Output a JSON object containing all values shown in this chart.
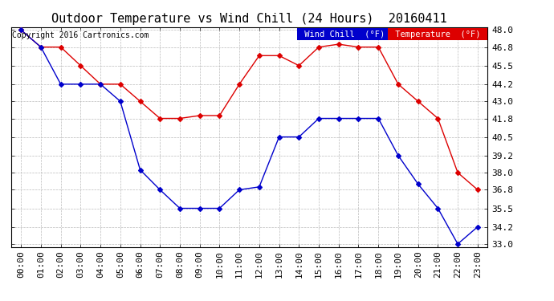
{
  "title": "Outdoor Temperature vs Wind Chill (24 Hours)  20160411",
  "copyright": "Copyright 2016 Cartronics.com",
  "background_color": "#ffffff",
  "plot_bg_color": "#ffffff",
  "grid_color": "#bbbbbb",
  "hours": [
    "00:00",
    "01:00",
    "02:00",
    "03:00",
    "04:00",
    "05:00",
    "06:00",
    "07:00",
    "08:00",
    "09:00",
    "10:00",
    "11:00",
    "12:00",
    "13:00",
    "14:00",
    "15:00",
    "16:00",
    "17:00",
    "18:00",
    "19:00",
    "20:00",
    "21:00",
    "22:00",
    "23:00"
  ],
  "temperature": [
    48.0,
    46.8,
    46.8,
    45.5,
    44.2,
    44.2,
    43.0,
    41.8,
    41.8,
    42.0,
    42.0,
    44.2,
    46.2,
    46.2,
    45.5,
    46.8,
    47.0,
    46.8,
    46.8,
    44.2,
    43.0,
    41.8,
    38.0,
    36.8
  ],
  "wind_chill": [
    48.0,
    46.8,
    44.2,
    44.2,
    44.2,
    43.0,
    38.2,
    36.8,
    35.5,
    35.5,
    35.5,
    36.8,
    37.0,
    40.5,
    40.5,
    41.8,
    41.8,
    41.8,
    41.8,
    39.2,
    37.2,
    35.5,
    33.0,
    34.2
  ],
  "ylim_min": 32.8,
  "ylim_max": 48.2,
  "yticks": [
    33.0,
    34.2,
    35.5,
    36.8,
    38.0,
    39.2,
    40.5,
    41.8,
    43.0,
    44.2,
    45.5,
    46.8,
    48.0
  ],
  "temp_color": "#dd0000",
  "wind_color": "#0000cc",
  "legend_wind_bg": "#0000cc",
  "legend_temp_bg": "#dd0000",
  "title_fontsize": 11,
  "tick_fontsize": 8,
  "copyright_fontsize": 7,
  "marker_size": 3
}
